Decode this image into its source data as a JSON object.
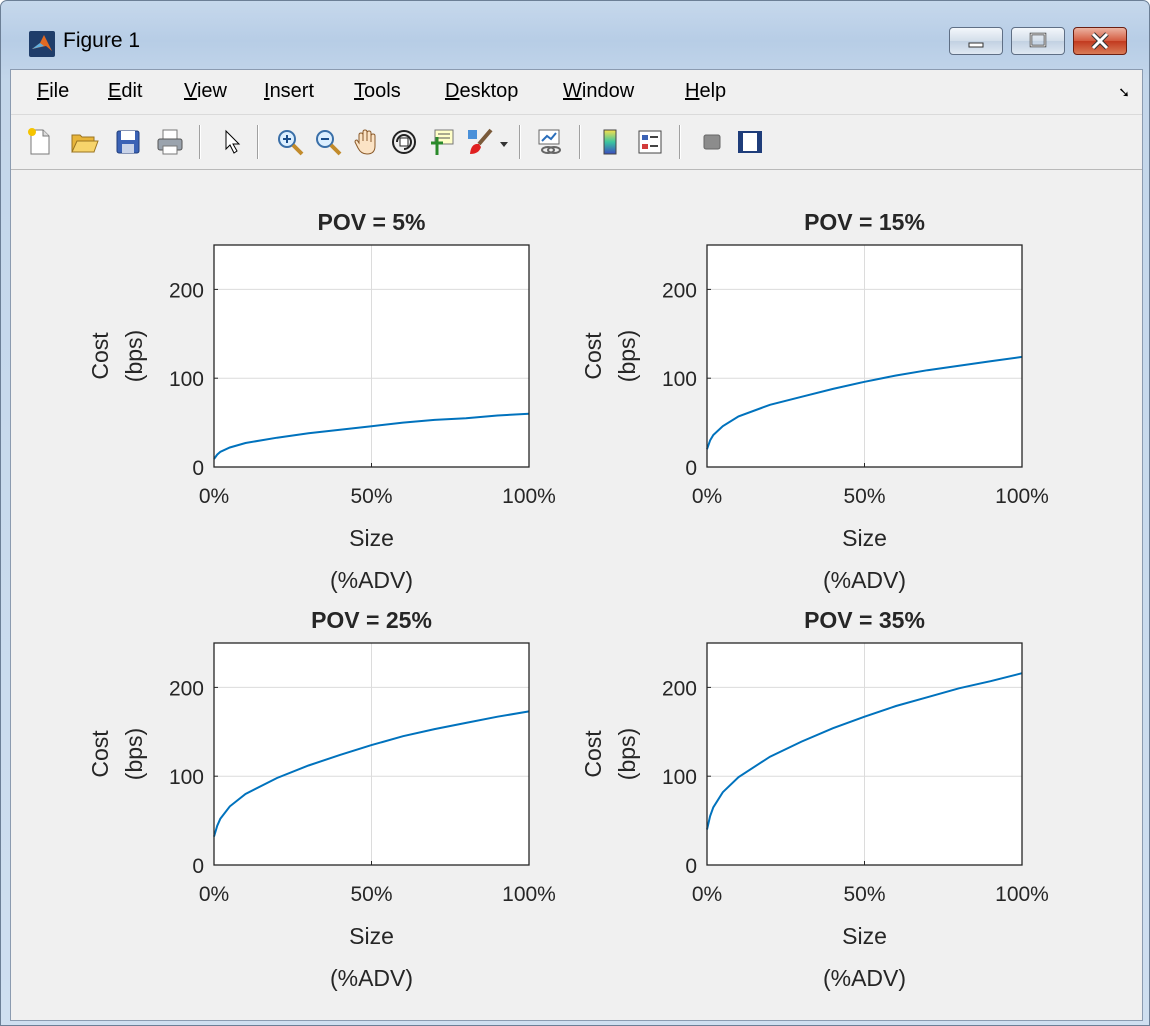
{
  "window": {
    "title": "Figure 1"
  },
  "menu": [
    {
      "ul": "F",
      "rest": "ile"
    },
    {
      "ul": "E",
      "rest": "dit"
    },
    {
      "ul": "V",
      "rest": "iew"
    },
    {
      "ul": "I",
      "rest": "nsert"
    },
    {
      "ul": "T",
      "rest": "ools"
    },
    {
      "ul": "D",
      "rest": "esktop"
    },
    {
      "ul": "W",
      "rest": "indow"
    },
    {
      "ul": "H",
      "rest": "elp"
    }
  ],
  "toolbar": [
    "new-figure-icon",
    "open-file-icon",
    "save-icon",
    "print-icon",
    "edit-plot-pointer-icon",
    "zoom-in-icon",
    "zoom-out-icon",
    "pan-hand-icon",
    "rotate-3d-icon",
    "data-cursor-icon",
    "brush-icon",
    "link-plot-icon",
    "insert-colorbar-icon",
    "insert-legend-icon",
    "hide-plot-tools-icon",
    "show-plot-tools-icon"
  ],
  "colors": {
    "line": "#0072bd",
    "grid": "#dcdcdc"
  },
  "chart_data": [
    {
      "type": "line",
      "title": "POV = 5%",
      "xlabel": [
        "Size",
        "(%ADV)"
      ],
      "ylabel": [
        "Cost",
        "(bps)"
      ],
      "xlim": [
        0,
        100
      ],
      "ylim": [
        0,
        250
      ],
      "xticks": [
        "0%",
        "50%",
        "100%"
      ],
      "yticks": [
        "0",
        "100",
        "200"
      ],
      "grid": true,
      "series": [
        {
          "x": [
            0,
            1,
            2,
            5,
            10,
            20,
            30,
            40,
            50,
            60,
            70,
            80,
            90,
            100
          ],
          "y": [
            9,
            14,
            17,
            22,
            27,
            33,
            38,
            42,
            46,
            50,
            53,
            55,
            58,
            60
          ]
        }
      ]
    },
    {
      "type": "line",
      "title": "POV = 15%",
      "xlabel": [
        "Size",
        "(%ADV)"
      ],
      "ylabel": [
        "Cost",
        "(bps)"
      ],
      "xlim": [
        0,
        100
      ],
      "ylim": [
        0,
        250
      ],
      "xticks": [
        "0%",
        "50%",
        "100%"
      ],
      "yticks": [
        "0",
        "100",
        "200"
      ],
      "grid": true,
      "series": [
        {
          "x": [
            0,
            1,
            2,
            5,
            10,
            20,
            30,
            40,
            50,
            60,
            70,
            80,
            90,
            100
          ],
          "y": [
            20,
            30,
            36,
            46,
            57,
            70,
            79,
            88,
            96,
            103,
            109,
            114,
            119,
            124
          ]
        }
      ]
    },
    {
      "type": "line",
      "title": "POV = 25%",
      "xlabel": [
        "Size",
        "(%ADV)"
      ],
      "ylabel": [
        "Cost",
        "(bps)"
      ],
      "xlim": [
        0,
        100
      ],
      "ylim": [
        0,
        250
      ],
      "xticks": [
        "0%",
        "50%",
        "100%"
      ],
      "yticks": [
        "0",
        "100",
        "200"
      ],
      "grid": true,
      "series": [
        {
          "x": [
            0,
            1,
            2,
            5,
            10,
            20,
            30,
            40,
            50,
            60,
            70,
            80,
            90,
            100
          ],
          "y": [
            32,
            44,
            52,
            66,
            80,
            98,
            112,
            124,
            135,
            145,
            153,
            160,
            167,
            173
          ]
        }
      ]
    },
    {
      "type": "line",
      "title": "POV = 35%",
      "xlabel": [
        "Size",
        "(%ADV)"
      ],
      "ylabel": [
        "Cost",
        "(bps)"
      ],
      "xlim": [
        0,
        100
      ],
      "ylim": [
        0,
        250
      ],
      "xticks": [
        "0%",
        "50%",
        "100%"
      ],
      "yticks": [
        "0",
        "100",
        "200"
      ],
      "grid": true,
      "series": [
        {
          "x": [
            0,
            1,
            2,
            5,
            10,
            20,
            30,
            40,
            50,
            60,
            70,
            80,
            90,
            100
          ],
          "y": [
            40,
            55,
            65,
            82,
            99,
            122,
            139,
            154,
            167,
            179,
            189,
            199,
            207,
            216
          ]
        }
      ]
    }
  ]
}
